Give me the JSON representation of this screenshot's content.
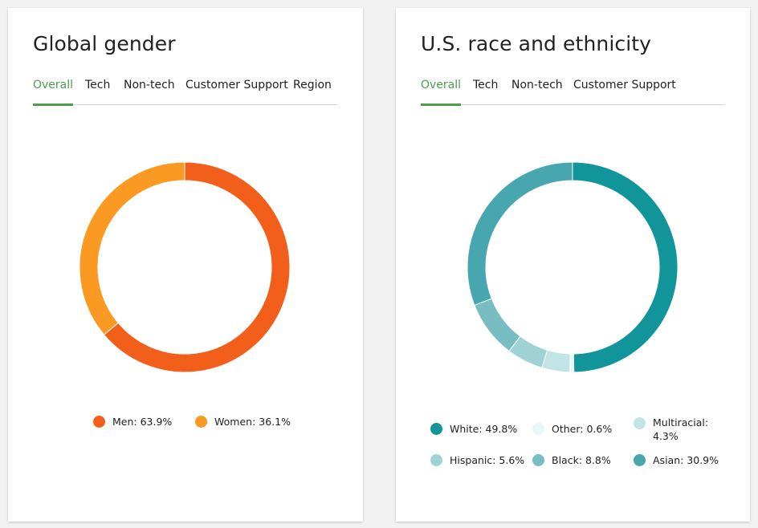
{
  "cards": [
    {
      "title": "Global gender",
      "tabs": [
        "Overall",
        "Tech",
        "Non-tech",
        "Customer Support",
        "Region"
      ],
      "active_tab": 0,
      "chart_data": {
        "type": "pie",
        "title": "Global gender",
        "donut": true,
        "slices": [
          {
            "label": "Men",
            "value": 63.9,
            "color": "#f25f1b",
            "legend_text": "Men: 63.9%"
          },
          {
            "label": "Women",
            "value": 36.1,
            "color": "#fa9a22",
            "legend_text": "Women: 36.1%"
          }
        ]
      }
    },
    {
      "title": "U.S. race and ethnicity",
      "tabs": [
        "Overall",
        "Tech",
        "Non-tech",
        "Customer Support"
      ],
      "active_tab": 0,
      "chart_data": {
        "type": "pie",
        "title": "U.S. race and ethnicity",
        "donut": true,
        "slices": [
          {
            "label": "White",
            "value": 49.8,
            "color": "#12959a",
            "legend_text": "White: 49.8%"
          },
          {
            "label": "Other",
            "value": 0.6,
            "color": "#e7f6f6",
            "legend_text": "Other: 0.6%"
          },
          {
            "label": "Multiracial",
            "value": 4.3,
            "color": "#c2e4e6",
            "legend_text": "Multiracial: 4.3%"
          },
          {
            "label": "Hispanic",
            "value": 5.6,
            "color": "#9fd2d5",
            "legend_text": "Hispanic: 5.6%"
          },
          {
            "label": "Black",
            "value": 8.8,
            "color": "#77bdc2",
            "legend_text": "Black: 8.8%"
          },
          {
            "label": "Asian",
            "value": 30.9,
            "color": "#47a6ae",
            "legend_text": "Asian: 30.9%"
          }
        ]
      }
    }
  ]
}
